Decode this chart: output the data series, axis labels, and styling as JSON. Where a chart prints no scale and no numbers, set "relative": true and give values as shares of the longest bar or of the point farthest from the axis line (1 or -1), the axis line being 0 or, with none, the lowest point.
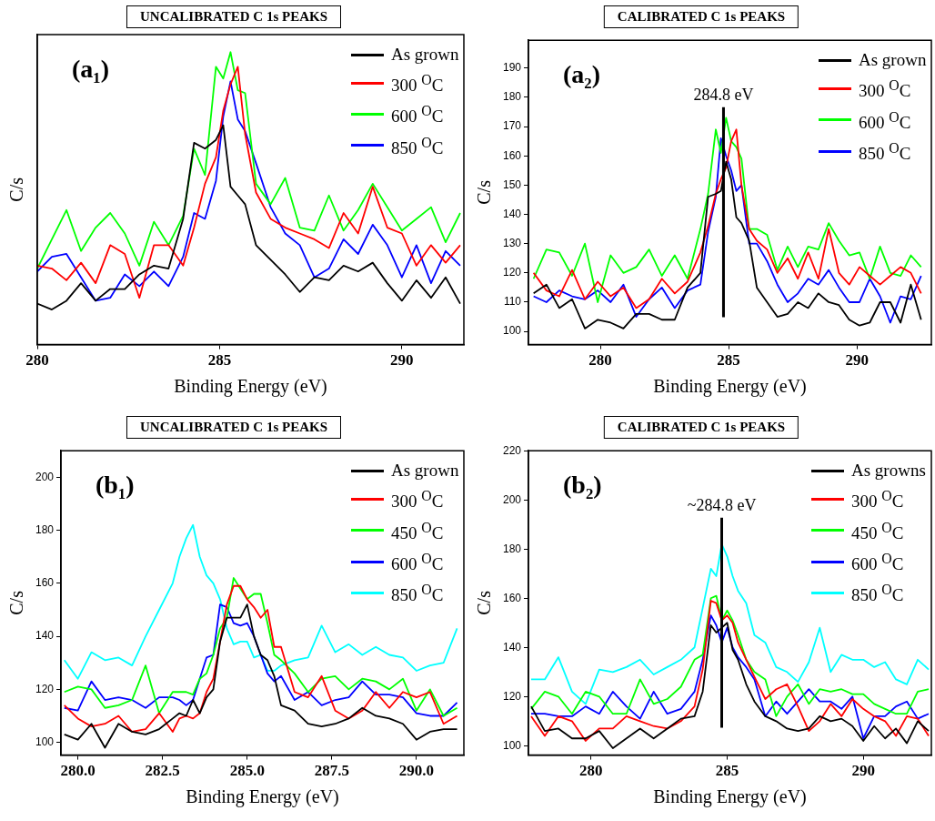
{
  "chart_data": [
    {
      "type": "line",
      "title": "UNCALIBRATED C 1s PEAKS",
      "xlabel": "Binding Energy (eV)",
      "ylabel": "C/s",
      "relative": true,
      "legend": "top right",
      "annotations": [
        "(a₁)"
      ],
      "xlim": [
        280,
        291.7
      ],
      "xticks": [
        280,
        285,
        290
      ],
      "x": [
        280.0,
        280.4,
        280.8,
        281.2,
        281.6,
        282.0,
        282.4,
        282.8,
        283.2,
        283.6,
        284.0,
        284.3,
        284.6,
        284.9,
        285.1,
        285.3,
        285.5,
        285.7,
        286.0,
        286.4,
        286.8,
        287.2,
        287.6,
        288.0,
        288.4,
        288.8,
        289.2,
        289.6,
        290.0,
        290.4,
        290.8,
        291.2,
        291.6
      ],
      "series": [
        {
          "name": "As grown",
          "color": "#000000",
          "values": [
            0.14,
            0.12,
            0.15,
            0.21,
            0.15,
            0.19,
            0.19,
            0.24,
            0.27,
            0.26,
            0.43,
            0.69,
            0.67,
            0.7,
            0.75,
            0.54,
            0.51,
            0.48,
            0.34,
            0.29,
            0.24,
            0.18,
            0.23,
            0.22,
            0.27,
            0.25,
            0.28,
            0.21,
            0.15,
            0.22,
            0.16,
            0.23,
            0.14
          ]
        },
        {
          "name": "300 $^{O}$C",
          "color": "#ff0000",
          "values": [
            0.27,
            0.26,
            0.22,
            0.28,
            0.21,
            0.34,
            0.31,
            0.16,
            0.34,
            0.34,
            0.27,
            0.4,
            0.55,
            0.64,
            0.8,
            0.89,
            0.95,
            0.72,
            0.52,
            0.43,
            0.4,
            0.38,
            0.36,
            0.33,
            0.45,
            0.38,
            0.54,
            0.4,
            0.38,
            0.27,
            0.34,
            0.28,
            0.34
          ]
        },
        {
          "name": "600 $^{O}$C",
          "color": "#00ff00",
          "values": [
            0.26,
            0.36,
            0.46,
            0.32,
            0.4,
            0.45,
            0.38,
            0.27,
            0.42,
            0.34,
            0.44,
            0.67,
            0.58,
            0.95,
            0.91,
            1.0,
            0.87,
            0.86,
            0.55,
            0.48,
            0.57,
            0.4,
            0.39,
            0.51,
            0.39,
            0.46,
            0.55,
            0.47,
            0.39,
            0.43,
            0.47,
            0.35,
            0.45
          ]
        },
        {
          "name": "850 $^{O}$C",
          "color": "#0000ff",
          "values": [
            0.25,
            0.3,
            0.31,
            0.23,
            0.15,
            0.16,
            0.24,
            0.2,
            0.25,
            0.2,
            0.3,
            0.45,
            0.43,
            0.56,
            0.78,
            0.9,
            0.77,
            0.73,
            0.62,
            0.47,
            0.38,
            0.34,
            0.23,
            0.26,
            0.36,
            0.31,
            0.41,
            0.34,
            0.23,
            0.34,
            0.21,
            0.32,
            0.27
          ]
        }
      ]
    },
    {
      "type": "line",
      "title": "CALIBRATED C 1s PEAKS",
      "xlabel": "Binding Energy (eV)",
      "ylabel": "C/s",
      "legend": "top right",
      "annotations": [
        "(a₂)"
      ],
      "ref_lines": [
        {
          "axis": "x",
          "value": 284.8,
          "label": "284.8 eV",
          "color": "#000000"
        }
      ],
      "xlim": [
        277.2,
        292.9
      ],
      "xticks": [
        280,
        285,
        290
      ],
      "ylim": [
        95.5,
        199.5
      ],
      "yticks": [
        100,
        110,
        120,
        130,
        140,
        150,
        160,
        170,
        180,
        190
      ],
      "x": [
        277.4,
        277.9,
        278.4,
        278.9,
        279.4,
        279.9,
        280.4,
        280.9,
        281.4,
        281.9,
        282.4,
        282.9,
        283.4,
        283.9,
        284.2,
        284.5,
        284.7,
        284.9,
        285.1,
        285.3,
        285.5,
        285.8,
        286.1,
        286.5,
        286.9,
        287.3,
        287.7,
        288.1,
        288.5,
        288.9,
        289.3,
        289.7,
        290.1,
        290.5,
        290.9,
        291.3,
        291.7,
        292.1,
        292.5
      ],
      "series": [
        {
          "name": "As grown",
          "color": "#000000",
          "values": [
            113,
            116,
            108,
            111,
            101,
            104,
            103,
            101,
            106,
            106,
            104,
            104,
            115,
            120,
            146,
            147,
            148,
            158,
            152,
            139,
            137,
            131,
            115,
            110,
            105,
            106,
            110,
            108,
            113,
            110,
            109,
            104,
            102,
            103,
            110,
            110,
            103,
            116,
            104
          ]
        },
        {
          "name": "300 $^{O}$C",
          "color": "#ff0000",
          "values": [
            120,
            114,
            112,
            121,
            111,
            117,
            112,
            115,
            108,
            111,
            118,
            113,
            117,
            127,
            136,
            147,
            152,
            156,
            165,
            169,
            150,
            135,
            131,
            128,
            120,
            125,
            118,
            127,
            118,
            135,
            120,
            116,
            122,
            119,
            116,
            119,
            122,
            120,
            113
          ]
        },
        {
          "name": "600 $^{O}$C",
          "color": "#00ff00",
          "values": [
            118,
            128,
            127,
            119,
            130,
            110,
            126,
            120,
            122,
            128,
            119,
            126,
            118,
            135,
            147,
            169,
            161,
            173,
            165,
            163,
            159,
            135,
            135,
            133,
            121,
            129,
            122,
            129,
            128,
            137,
            131,
            126,
            127,
            118,
            129,
            120,
            119,
            126,
            122
          ]
        },
        {
          "name": "850 $^{O}$C",
          "color": "#0000ff",
          "values": [
            112,
            110,
            114,
            112,
            111,
            114,
            110,
            116,
            105,
            111,
            115,
            108,
            114,
            116,
            134,
            146,
            166,
            160,
            155,
            148,
            150,
            130,
            130,
            124,
            116,
            110,
            113,
            118,
            116,
            121,
            115,
            110,
            110,
            118,
            112,
            103,
            112,
            111,
            119
          ]
        }
      ]
    },
    {
      "type": "line",
      "title": "UNCALIBRATED C 1s PEAKS",
      "xlabel": "Binding Energy (eV)",
      "ylabel": "C/s",
      "legend": "top right",
      "annotations": [
        "(b₁)"
      ],
      "xlim": [
        279.5,
        291.4
      ],
      "xticks": [
        {
          "value": 280,
          "label": "280.0"
        },
        282.5,
        {
          "value": 285,
          "label": "285.0"
        },
        287.5,
        {
          "value": 290,
          "label": "290.0"
        }
      ],
      "ylim": [
        95.2,
        210
      ],
      "yticks": [
        100,
        120,
        140,
        160,
        180,
        200
      ],
      "x": [
        279.6,
        280.0,
        280.4,
        280.8,
        281.2,
        281.6,
        282.0,
        282.4,
        282.8,
        283.0,
        283.2,
        283.4,
        283.6,
        283.8,
        284.0,
        284.2,
        284.4,
        284.6,
        284.8,
        285.0,
        285.2,
        285.4,
        285.6,
        285.8,
        286.0,
        286.4,
        286.8,
        287.2,
        287.6,
        288.0,
        288.4,
        288.8,
        289.2,
        289.6,
        290.0,
        290.4,
        290.8,
        291.2
      ],
      "series": [
        {
          "name": "As grown",
          "color": "#000000",
          "values": [
            103,
            101,
            107,
            98,
            107,
            104,
            103,
            105,
            109,
            111,
            110,
            116,
            111,
            117,
            120,
            138,
            147,
            147,
            147,
            152,
            140,
            133,
            131,
            125,
            114,
            112,
            107,
            106,
            107,
            109,
            113,
            110,
            109,
            107,
            101,
            104,
            105,
            105
          ]
        },
        {
          "name": "300 $^{O}$C",
          "color": "#ff0000",
          "values": [
            114,
            109,
            106,
            107,
            110,
            104,
            105,
            111,
            104,
            109,
            110,
            109,
            111,
            119,
            124,
            138,
            152,
            159,
            159,
            154,
            151,
            147,
            150,
            136,
            136,
            119,
            117,
            125,
            112,
            109,
            112,
            119,
            113,
            119,
            117,
            119,
            107,
            110
          ]
        },
        {
          "name": "450 $^{O}$C",
          "color": "#00ff00",
          "values": [
            119,
            121,
            120,
            113,
            114,
            116,
            129,
            111,
            119,
            119,
            119,
            118,
            124,
            126,
            133,
            143,
            147,
            162,
            158,
            154,
            156,
            156,
            145,
            133,
            131,
            126,
            119,
            124,
            125,
            120,
            124,
            123,
            120,
            124,
            112,
            120,
            110,
            113
          ]
        },
        {
          "name": "600 $^{O}$C",
          "color": "#0000ff",
          "values": [
            113,
            112,
            123,
            116,
            117,
            116,
            113,
            117,
            117,
            116,
            114,
            116,
            124,
            132,
            133,
            152,
            151,
            145,
            144,
            145,
            140,
            133,
            126,
            123,
            125,
            116,
            119,
            114,
            116,
            117,
            123,
            118,
            118,
            117,
            111,
            110,
            110,
            115
          ]
        },
        {
          "name": "850 $^{O}$C",
          "color": "#00ffff",
          "values": [
            131,
            124,
            134,
            131,
            132,
            129,
            140,
            150,
            160,
            170,
            177,
            182,
            170,
            163,
            160,
            154,
            143,
            137,
            138,
            138,
            132,
            133,
            127,
            127,
            129,
            131,
            132,
            144,
            134,
            137,
            133,
            136,
            133,
            132,
            127,
            129,
            130,
            143
          ]
        }
      ]
    },
    {
      "type": "line",
      "title": "CALIBRATED C 1s PEAKS",
      "xlabel": "Binding Energy (eV)",
      "ylabel": "C/s",
      "legend": "top right",
      "annotations": [
        "(b₂)"
      ],
      "ref_lines": [
        {
          "axis": "x",
          "value": 284.8,
          "label": "~284.8 eV",
          "color": "#000000"
        }
      ],
      "xlim": [
        277.7,
        292.5
      ],
      "xticks": [
        280,
        285,
        290
      ],
      "ylim": [
        96.2,
        220
      ],
      "yticks": [
        100,
        120,
        140,
        160,
        180,
        200,
        220
      ],
      "x": [
        277.8,
        278.3,
        278.8,
        279.3,
        279.8,
        280.3,
        280.8,
        281.3,
        281.8,
        282.3,
        282.8,
        283.3,
        283.8,
        284.1,
        284.4,
        284.6,
        284.8,
        285.0,
        285.2,
        285.4,
        285.7,
        286.0,
        286.4,
        286.8,
        287.2,
        287.6,
        288.0,
        288.4,
        288.8,
        289.2,
        289.6,
        290.0,
        290.4,
        290.8,
        291.2,
        291.6,
        292.0,
        292.4
      ],
      "series": [
        {
          "name": "As growns",
          "color": "#000000",
          "values": [
            116,
            106,
            107,
            103,
            103,
            106,
            99,
            103,
            107,
            103,
            107,
            111,
            112,
            122,
            149,
            146,
            148,
            150,
            139,
            135,
            125,
            118,
            112,
            110,
            107,
            106,
            107,
            112,
            110,
            111,
            108,
            102,
            108,
            103,
            107,
            101,
            110,
            106
          ]
        },
        {
          "name": "300 $^{O}$C",
          "color": "#ff0000",
          "values": [
            112,
            104,
            112,
            110,
            102,
            107,
            107,
            112,
            110,
            108,
            107,
            110,
            116,
            131,
            159,
            158,
            151,
            153,
            150,
            142,
            135,
            128,
            119,
            123,
            125,
            116,
            106,
            110,
            117,
            112,
            119,
            115,
            112,
            110,
            104,
            112,
            111,
            104
          ]
        },
        {
          "name": "450 $^{O}$C",
          "color": "#00ff00",
          "values": [
            115,
            122,
            120,
            113,
            122,
            120,
            113,
            113,
            127,
            117,
            119,
            124,
            135,
            137,
            160,
            161,
            151,
            155,
            151,
            145,
            135,
            130,
            127,
            112,
            120,
            125,
            117,
            123,
            122,
            123,
            121,
            121,
            117,
            115,
            113,
            113,
            122,
            123
          ]
        },
        {
          "name": "600 $^{O}$C",
          "color": "#0000ff",
          "values": [
            113,
            113,
            112,
            112,
            116,
            113,
            122,
            116,
            111,
            122,
            113,
            115,
            122,
            135,
            153,
            149,
            142,
            148,
            140,
            136,
            132,
            127,
            112,
            118,
            113,
            118,
            123,
            118,
            118,
            115,
            120,
            103,
            112,
            112,
            116,
            118,
            111,
            113
          ]
        },
        {
          "name": "850 $^{O}$C",
          "color": "#00ffff",
          "values": [
            127,
            127,
            136,
            122,
            117,
            131,
            130,
            132,
            135,
            129,
            132,
            135,
            140,
            156,
            172,
            169,
            182,
            177,
            169,
            163,
            158,
            145,
            142,
            132,
            130,
            126,
            134,
            148,
            130,
            137,
            135,
            135,
            132,
            134,
            127,
            125,
            135,
            131
          ]
        }
      ]
    }
  ]
}
